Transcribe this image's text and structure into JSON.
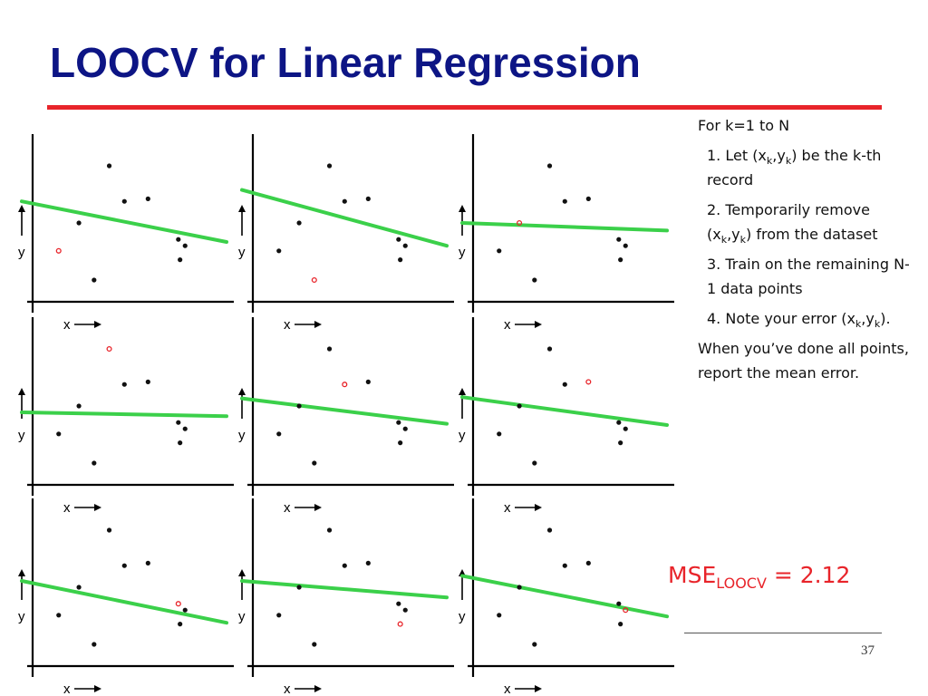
{
  "slide": {
    "title": "LOOCV for Linear Regression",
    "page_number": "37",
    "accent_color": "#e8242a",
    "title_color": "#0d1585"
  },
  "steps": {
    "intro": "For k=1 to N",
    "step1": {
      "pre": "1. Let (x",
      "sub1": "k",
      "mid": ",y",
      "sub2": "k",
      "post": ") be the k-th record"
    },
    "step2": {
      "pre": "2. Temporarily remove (x",
      "sub1": "k",
      "mid": ",y",
      "sub2": "k",
      "post": ") from the dataset"
    },
    "step3": "3. Train on the remaining N-1 data points",
    "step4": {
      "pre": "4. Note your error (x",
      "sub1": "k",
      "mid": ",y",
      "sub2": "k",
      "post": ")."
    },
    "outro": "When you’ve done all points, report the mean error."
  },
  "mse": {
    "label": "MSE",
    "subscript": "LOOCV",
    "value": "= 2.12"
  },
  "axes": {
    "x_label": "x",
    "y_label": "y"
  },
  "chart_data": {
    "type": "scatter",
    "description_units": "relative data units, x and y in [0,1]",
    "points": [
      [
        0.09,
        0.33
      ],
      [
        0.21,
        0.55
      ],
      [
        0.39,
        1.0
      ],
      [
        0.48,
        0.72
      ],
      [
        0.62,
        0.74
      ],
      [
        0.8,
        0.42
      ],
      [
        0.81,
        0.26
      ],
      [
        0.84,
        0.37
      ],
      [
        0.3,
        0.1
      ]
    ],
    "panels": [
      {
        "held_out": 0,
        "fit": [
          [
            0.0,
            0.72
          ],
          [
            1.0,
            0.4
          ]
        ]
      },
      {
        "held_out": 8,
        "fit": [
          [
            0.0,
            0.81
          ],
          [
            1.0,
            0.37
          ]
        ]
      },
      {
        "held_out": 1,
        "fit": [
          [
            0.0,
            0.55
          ],
          [
            1.0,
            0.49
          ]
        ]
      },
      {
        "held_out": 2,
        "fit": [
          [
            0.0,
            0.5
          ],
          [
            1.0,
            0.47
          ]
        ]
      },
      {
        "held_out": 3,
        "fit": [
          [
            0.0,
            0.61
          ],
          [
            1.0,
            0.41
          ]
        ]
      },
      {
        "held_out": 4,
        "fit": [
          [
            0.0,
            0.62
          ],
          [
            1.0,
            0.4
          ]
        ]
      },
      {
        "held_out": 5,
        "fit": [
          [
            0.0,
            0.6
          ],
          [
            1.0,
            0.27
          ]
        ]
      },
      {
        "held_out": 6,
        "fit": [
          [
            0.0,
            0.6
          ],
          [
            1.0,
            0.47
          ]
        ]
      },
      {
        "held_out": 7,
        "fit": [
          [
            0.0,
            0.64
          ],
          [
            1.0,
            0.32
          ]
        ]
      }
    ],
    "fit_color": "#3bd04a",
    "point_color": "#111111",
    "held_out_color": "#e8242a"
  }
}
